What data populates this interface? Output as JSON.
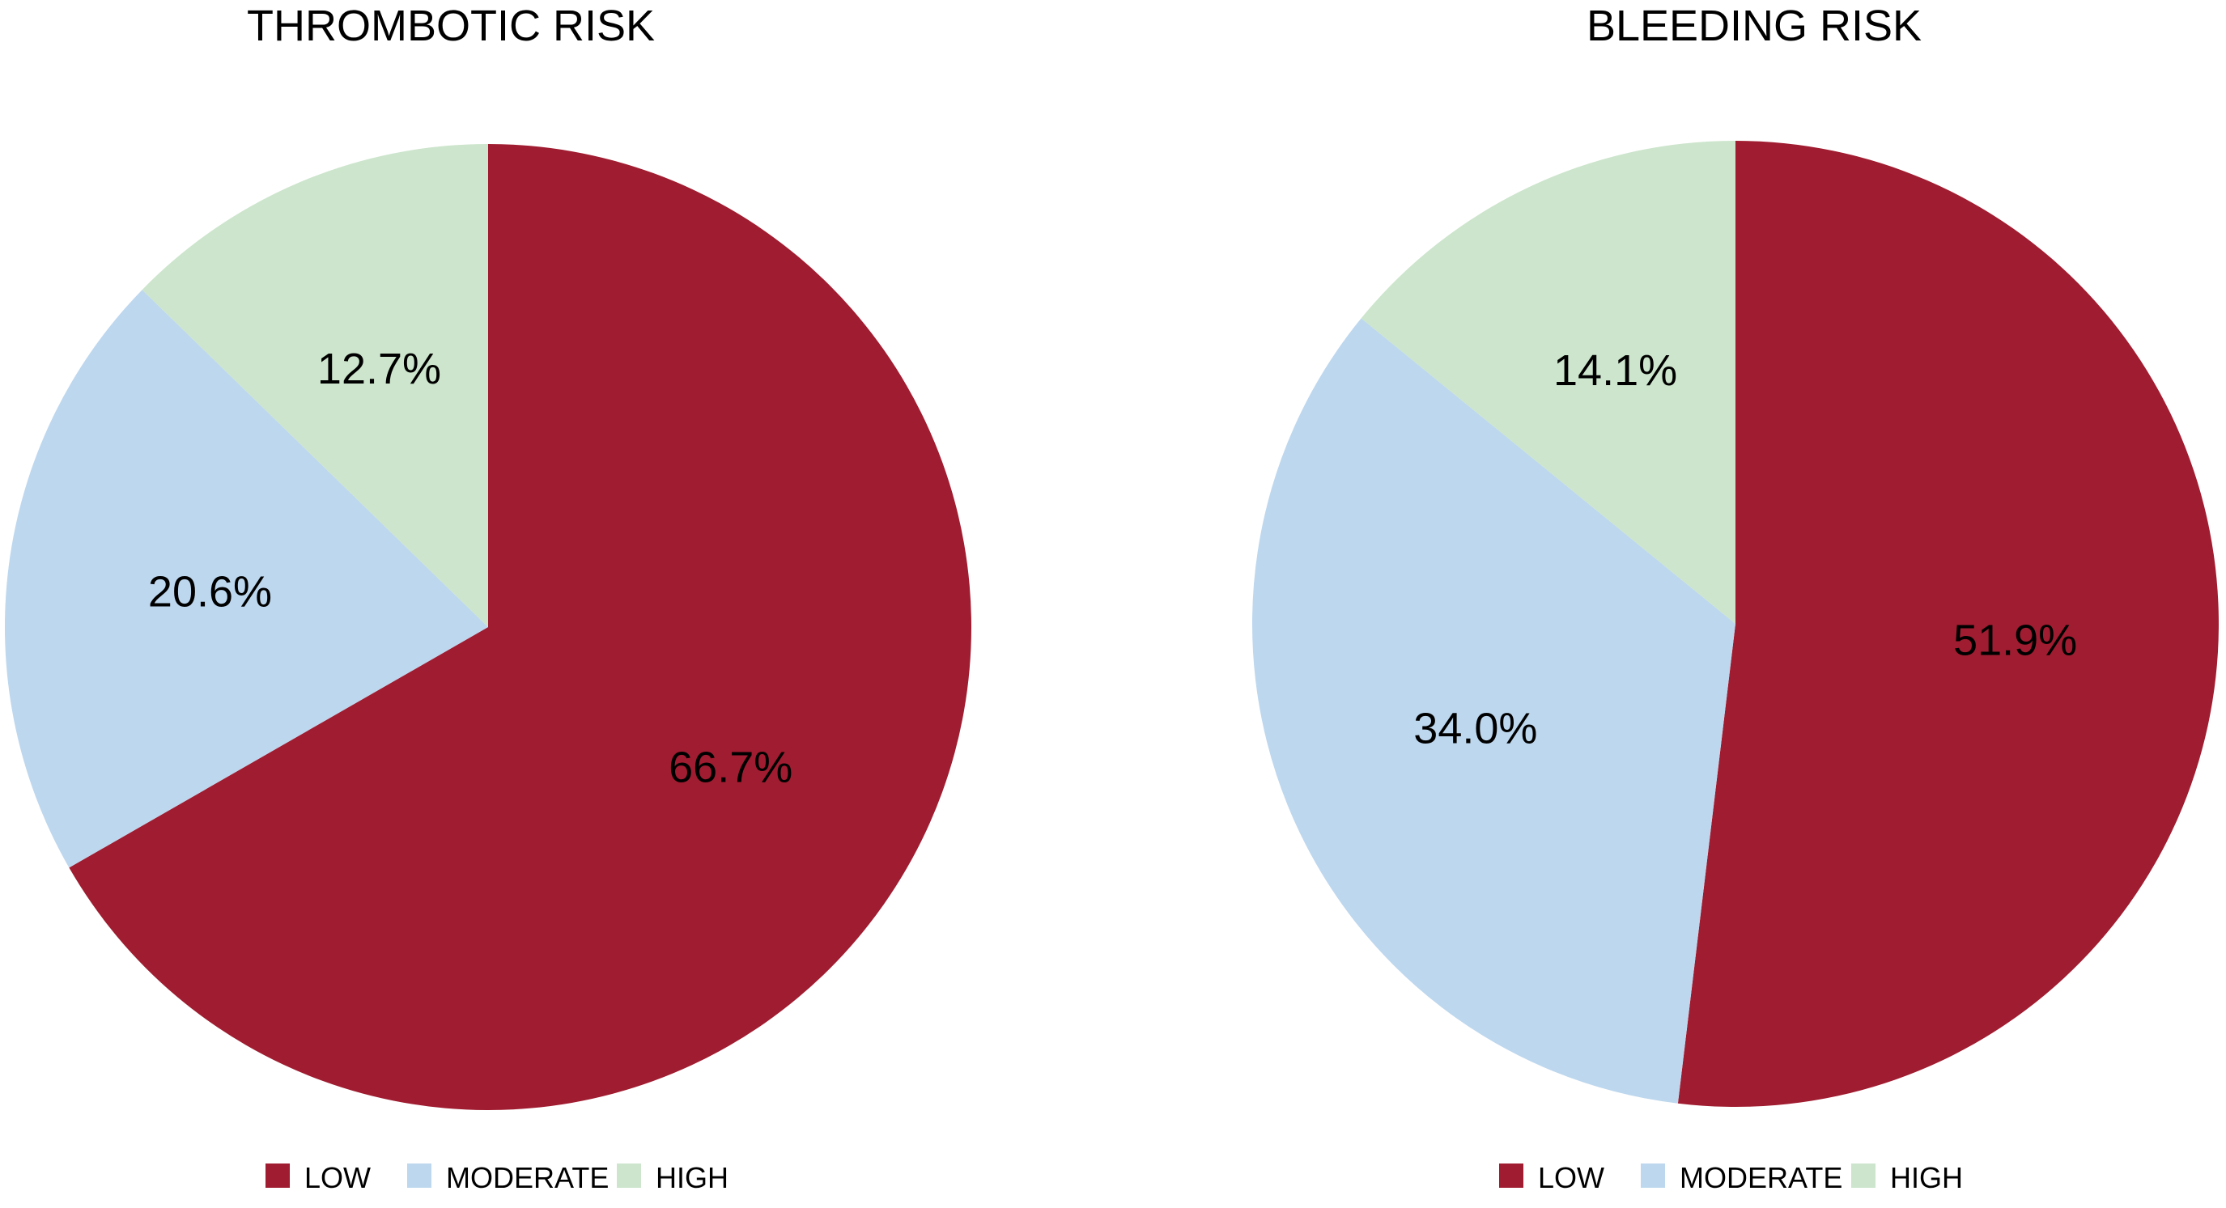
{
  "chart_data": [
    {
      "type": "pie",
      "title": "THROMBOTIC RISK",
      "legend_position": "bottom",
      "slices": [
        {
          "label": "LOW",
          "value": 66.7,
          "display": "66.7%",
          "color": "#A01C30"
        },
        {
          "label": "MODERATE",
          "value": 20.6,
          "display": "20.6%",
          "color": "#BDD7EE"
        },
        {
          "label": "HIGH",
          "value": 12.7,
          "display": "12.7%",
          "color": "#CCE5CC"
        }
      ]
    },
    {
      "type": "pie",
      "title": "BLEEDING RISK",
      "legend_position": "bottom",
      "slices": [
        {
          "label": "LOW",
          "value": 51.9,
          "display": "51.9%",
          "color": "#A01C30"
        },
        {
          "label": "MODERATE",
          "value": 34.0,
          "display": "34.0%",
          "color": "#BDD7EE"
        },
        {
          "label": "HIGH",
          "value": 14.1,
          "display": "14.1%",
          "color": "#CCE5CC"
        }
      ]
    }
  ]
}
